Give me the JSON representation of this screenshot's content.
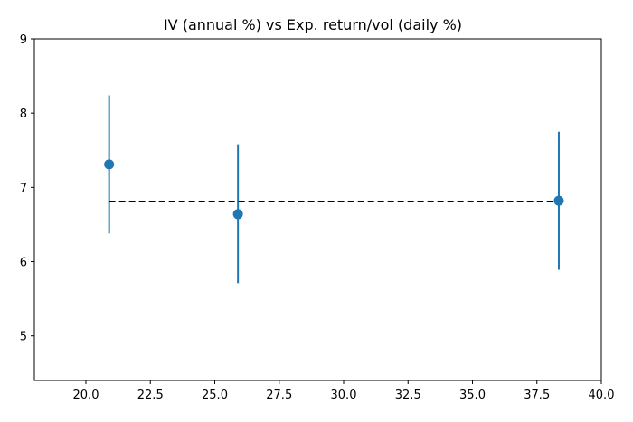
{
  "chart_data": {
    "type": "scatter",
    "title": "IV (annual %) vs Exp. return/vol (daily %)",
    "xlabel": "",
    "ylabel": "",
    "xlim": [
      18.0,
      40.0
    ],
    "ylim": [
      4.4,
      9.0
    ],
    "x_ticks": [
      20.0,
      22.5,
      25.0,
      27.5,
      30.0,
      32.5,
      35.0,
      37.5,
      40.0
    ],
    "x_tick_labels": [
      "20.0",
      "22.5",
      "25.0",
      "27.5",
      "30.0",
      "32.5",
      "35.0",
      "37.5",
      "40.0"
    ],
    "y_ticks": [
      5,
      6,
      7,
      8,
      9
    ],
    "y_tick_labels": [
      "5",
      "6",
      "7",
      "8",
      "9"
    ],
    "grid": false,
    "series": [
      {
        "kind": "errorbar",
        "color": "#1f77b4",
        "points": [
          {
            "x": 20.9,
            "y": 7.31,
            "ylow": 6.38,
            "yhigh": 8.24
          },
          {
            "x": 25.9,
            "y": 6.64,
            "ylow": 5.71,
            "yhigh": 7.58
          },
          {
            "x": 38.35,
            "y": 6.82,
            "ylow": 5.89,
            "yhigh": 7.75
          }
        ]
      },
      {
        "kind": "reference-line",
        "style": "dashed",
        "color": "#000000",
        "x": [
          20.9,
          38.35
        ],
        "y": [
          6.81,
          6.81
        ]
      }
    ]
  }
}
